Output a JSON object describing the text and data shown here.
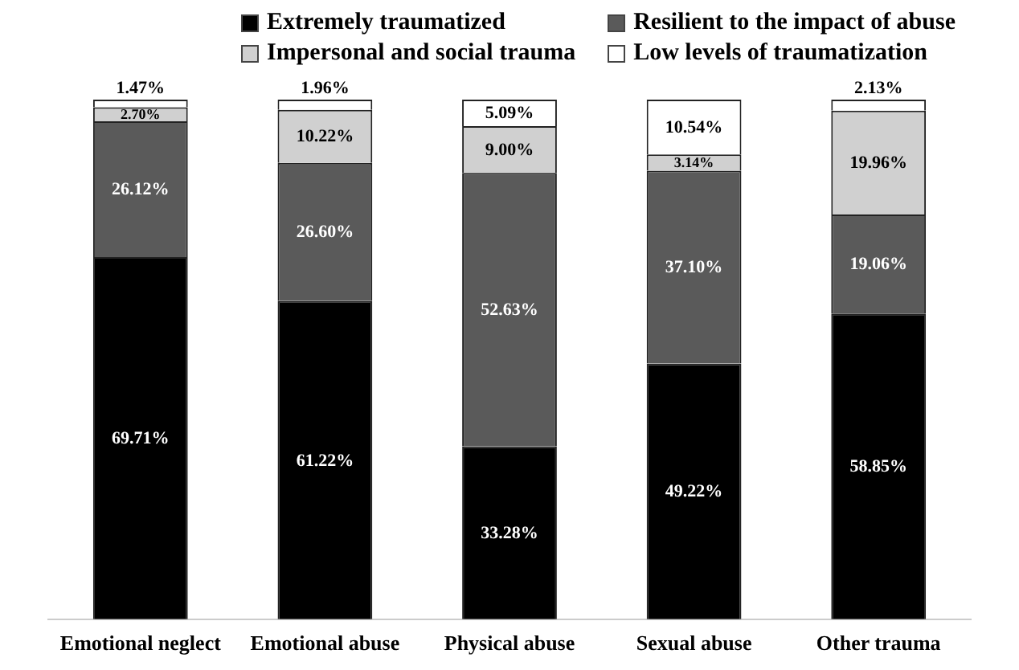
{
  "chart_data": {
    "type": "bar",
    "stacked": true,
    "legend": "top",
    "grid": false,
    "tick_labels": "x",
    "categories": [
      "Emotional neglect",
      "Emotional abuse",
      "Physical abuse",
      "Sexual abuse",
      "Other trauma"
    ],
    "series": [
      {
        "name": "Extremely traumatized",
        "color": "#000000",
        "values": [
          69.71,
          61.22,
          33.28,
          49.22,
          58.85
        ],
        "value_labels": [
          "69.71%",
          "61.22%",
          "33.28%",
          "49.22%",
          "58.85%"
        ]
      },
      {
        "name": "Resilient to the impact of abuse",
        "color": "#5a5a5a",
        "values": [
          26.12,
          26.6,
          52.63,
          37.1,
          19.06
        ],
        "value_labels": [
          "26.12%",
          "26.60%",
          "52.63%",
          "37.10%",
          "19.06%"
        ]
      },
      {
        "name": "Impersonal and social trauma",
        "color": "#d0d0d0",
        "values": [
          2.7,
          10.22,
          9.0,
          3.14,
          19.96
        ],
        "value_labels": [
          "2.70%",
          "10.22%",
          "9.00%",
          "3.14%",
          "19.96%"
        ]
      },
      {
        "name": "Low levels of traumatization",
        "color": "#ffffff",
        "values": [
          1.47,
          1.96,
          5.09,
          10.54,
          2.13
        ],
        "value_labels": [
          "1.47%",
          "1.96%",
          "5.09%",
          "10.54%",
          "2.13%"
        ]
      }
    ]
  }
}
